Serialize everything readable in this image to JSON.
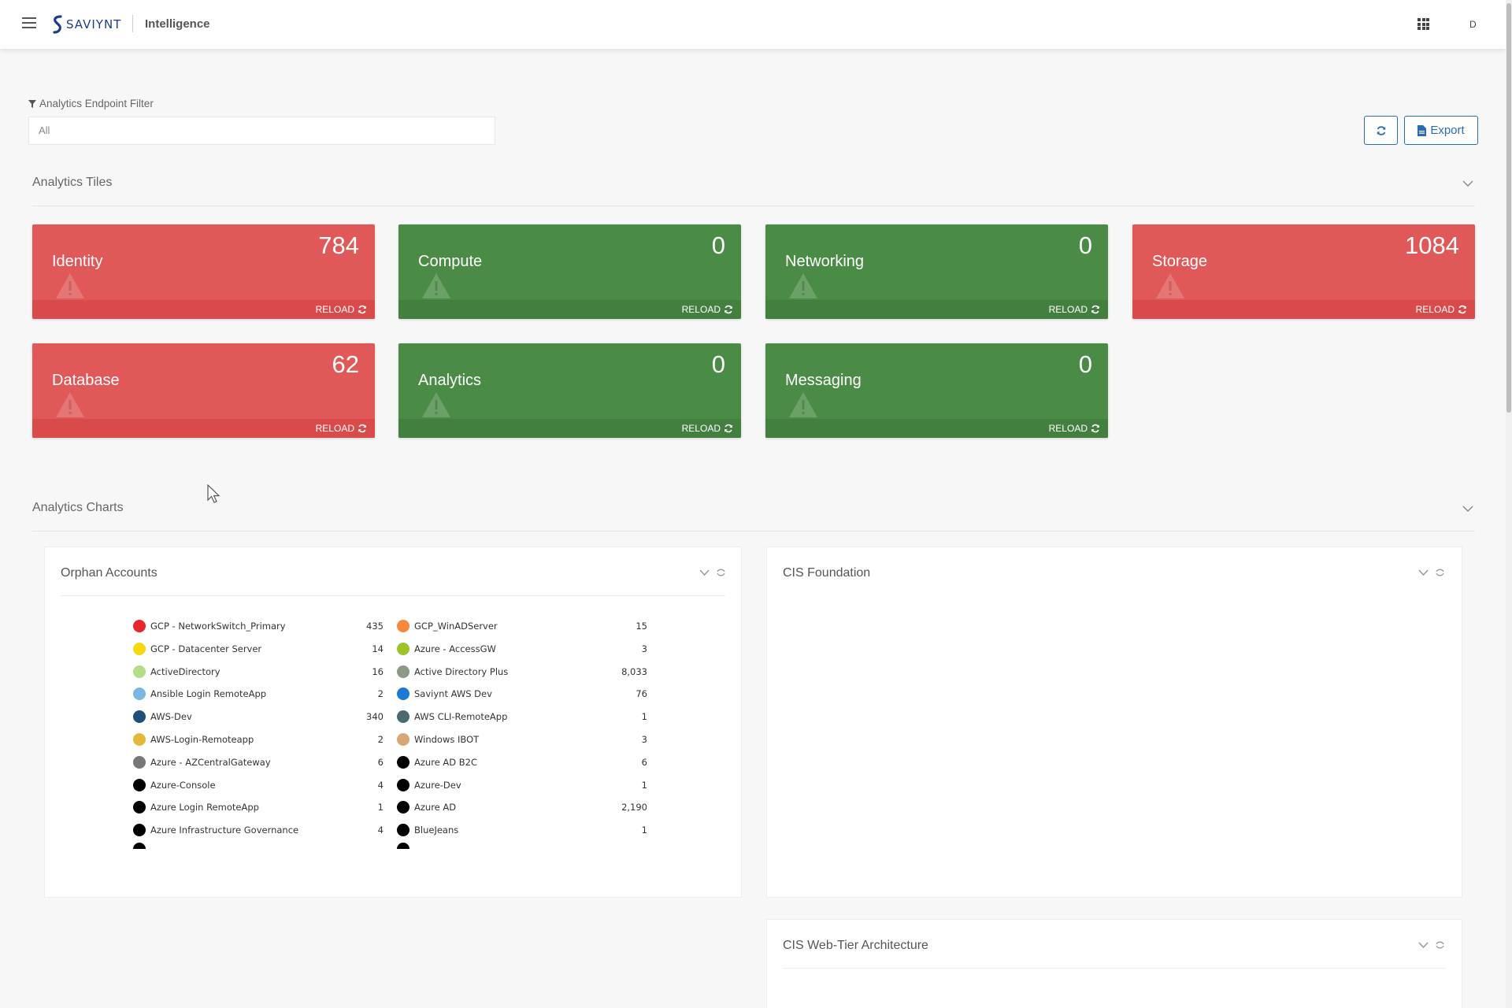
{
  "header": {
    "logo_text": "SAVIYNT",
    "app_title": "Intelligence",
    "user_initial": "D"
  },
  "filter": {
    "label": "Analytics Endpoint Filter",
    "value": "All"
  },
  "toolbar": {
    "export_label": "Export"
  },
  "tiles_section": {
    "title": "Analytics Tiles",
    "tiles": [
      {
        "name": "Identity",
        "count": "784",
        "status": "red",
        "reload_label": "RELOAD"
      },
      {
        "name": "Compute",
        "count": "0",
        "status": "green",
        "reload_label": "RELOAD"
      },
      {
        "name": "Networking",
        "count": "0",
        "status": "green",
        "reload_label": "RELOAD"
      },
      {
        "name": "Storage",
        "count": "1084",
        "status": "red",
        "reload_label": "RELOAD"
      },
      {
        "name": "Database",
        "count": "62",
        "status": "red",
        "reload_label": "RELOAD"
      },
      {
        "name": "Analytics",
        "count": "0",
        "status": "green",
        "reload_label": "RELOAD"
      },
      {
        "name": "Messaging",
        "count": "0",
        "status": "green",
        "reload_label": "RELOAD"
      }
    ]
  },
  "charts_section": {
    "title": "Analytics Charts",
    "cards": [
      {
        "title": "Orphan Accounts",
        "legend_left": [
          {
            "name": "GCP - NetworkSwitch_Primary",
            "value": "435",
            "color": "#e8262b"
          },
          {
            "name": "GCP - Datacenter Server",
            "value": "14",
            "color": "#f5d80f"
          },
          {
            "name": "ActiveDirectory",
            "value": "16",
            "color": "#b5dc86"
          },
          {
            "name": "Ansible Login RemoteApp",
            "value": "2",
            "color": "#7ab8e3"
          },
          {
            "name": "AWS-Dev",
            "value": "340",
            "color": "#1f4e7a"
          },
          {
            "name": "AWS-Login-Remoteapp",
            "value": "2",
            "color": "#e3b93a"
          },
          {
            "name": "Azure - AZCentralGateway",
            "value": "6",
            "color": "#777777"
          },
          {
            "name": "Azure-Console",
            "value": "4",
            "color": "#000000"
          },
          {
            "name": "Azure Login RemoteApp",
            "value": "1",
            "color": "#000000"
          },
          {
            "name": "Azure Infrastructure Governance",
            "value": "4",
            "color": "#000000"
          }
        ],
        "legend_right": [
          {
            "name": "GCP_WinADServer",
            "value": "15",
            "color": "#f58a3a"
          },
          {
            "name": "Azure - AccessGW",
            "value": "3",
            "color": "#9cc22c"
          },
          {
            "name": "Active Directory Plus",
            "value": "8,033",
            "color": "#8c9a84"
          },
          {
            "name": "Saviynt AWS Dev",
            "value": "76",
            "color": "#1d7ad4"
          },
          {
            "name": "AWS CLI-RemoteApp",
            "value": "1",
            "color": "#4a6a70"
          },
          {
            "name": "Windows IBOT",
            "value": "3",
            "color": "#d7a874"
          },
          {
            "name": "Azure AD B2C",
            "value": "6",
            "color": "#000000"
          },
          {
            "name": "Azure-Dev",
            "value": "1",
            "color": "#000000"
          },
          {
            "name": "Azure AD",
            "value": "2,190",
            "color": "#000000"
          },
          {
            "name": "BlueJeans",
            "value": "1",
            "color": "#000000"
          }
        ]
      },
      {
        "title": "CIS Foundation"
      },
      {
        "title": "CIS Web-Tier Architecture"
      }
    ]
  }
}
